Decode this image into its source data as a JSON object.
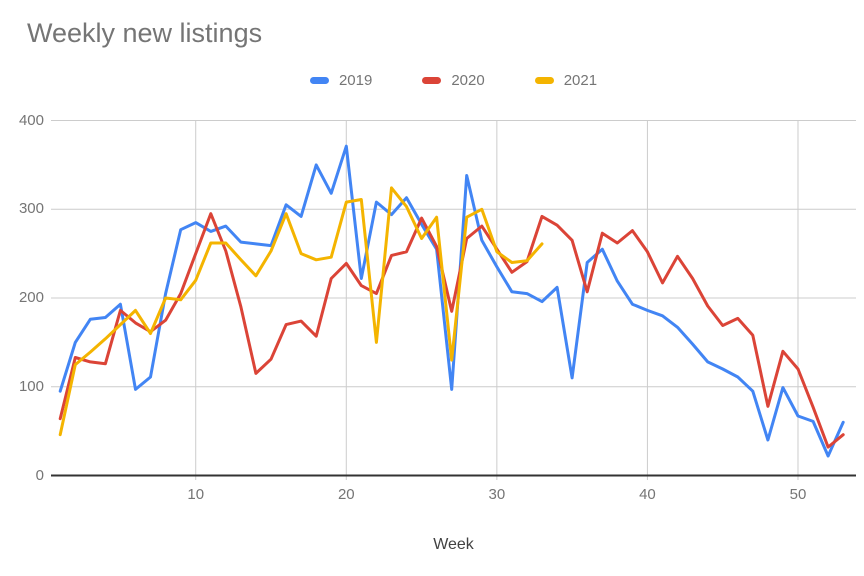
{
  "chart_data": {
    "type": "line",
    "title": "Weekly new listings",
    "xlabel": "Week",
    "ylabel": "",
    "xlim": [
      1,
      53
    ],
    "ylim": [
      0,
      400
    ],
    "grid": true,
    "legend_position": "top-center",
    "x_ticks": [
      10,
      20,
      30,
      40,
      50
    ],
    "y_ticks": [
      0,
      100,
      200,
      300,
      400
    ],
    "x": [
      1,
      2,
      3,
      4,
      5,
      6,
      7,
      8,
      9,
      10,
      11,
      12,
      13,
      14,
      15,
      16,
      17,
      18,
      19,
      20,
      21,
      22,
      23,
      24,
      25,
      26,
      27,
      28,
      29,
      30,
      31,
      32,
      33,
      34,
      35,
      36,
      37,
      38,
      39,
      40,
      41,
      42,
      43,
      44,
      45,
      46,
      47,
      48,
      49,
      50,
      51,
      52,
      53
    ],
    "series": [
      {
        "name": "2019",
        "color": "#4285F4",
        "values": [
          95,
          150,
          176,
          178,
          193,
          97,
          111,
          205,
          277,
          285,
          275,
          281,
          263,
          261,
          259,
          305,
          292,
          350,
          318,
          371,
          222,
          308,
          294,
          313,
          283,
          255,
          97,
          338,
          265,
          235,
          207,
          205,
          196,
          212,
          110,
          240,
          255,
          219,
          193,
          186,
          180,
          167,
          148,
          128,
          120,
          111,
          95,
          40,
          99,
          67,
          61,
          22,
          60
        ]
      },
      {
        "name": "2020",
        "color": "#DB4437",
        "values": [
          64,
          133,
          128,
          126,
          186,
          172,
          162,
          175,
          205,
          250,
          295,
          253,
          190,
          115,
          131,
          170,
          174,
          157,
          222,
          239,
          214,
          205,
          248,
          252,
          290,
          258,
          185,
          267,
          281,
          255,
          229,
          241,
          292,
          282,
          265,
          207,
          273,
          262,
          276,
          252,
          217,
          247,
          222,
          191,
          169,
          177,
          158,
          78,
          140,
          120,
          77,
          32,
          46
        ]
      },
      {
        "name": "2021",
        "color": "#F4B400",
        "values": [
          46,
          125,
          139,
          154,
          170,
          186,
          160,
          200,
          198,
          220,
          262,
          262,
          243,
          225,
          253,
          295,
          250,
          243,
          246,
          308,
          311,
          150,
          324,
          303,
          267,
          291,
          130,
          291,
          300,
          252,
          240,
          242,
          261,
          null,
          null,
          null,
          null,
          null,
          null,
          null,
          null,
          null,
          null,
          null,
          null,
          null,
          null,
          null,
          null,
          null,
          null,
          null,
          null
        ]
      }
    ],
    "axis_colors": {
      "gridline": "#cccccc",
      "baseline": "#333333",
      "tick_label": "#757575",
      "title": "#757575",
      "axis_title": "#424242"
    }
  }
}
